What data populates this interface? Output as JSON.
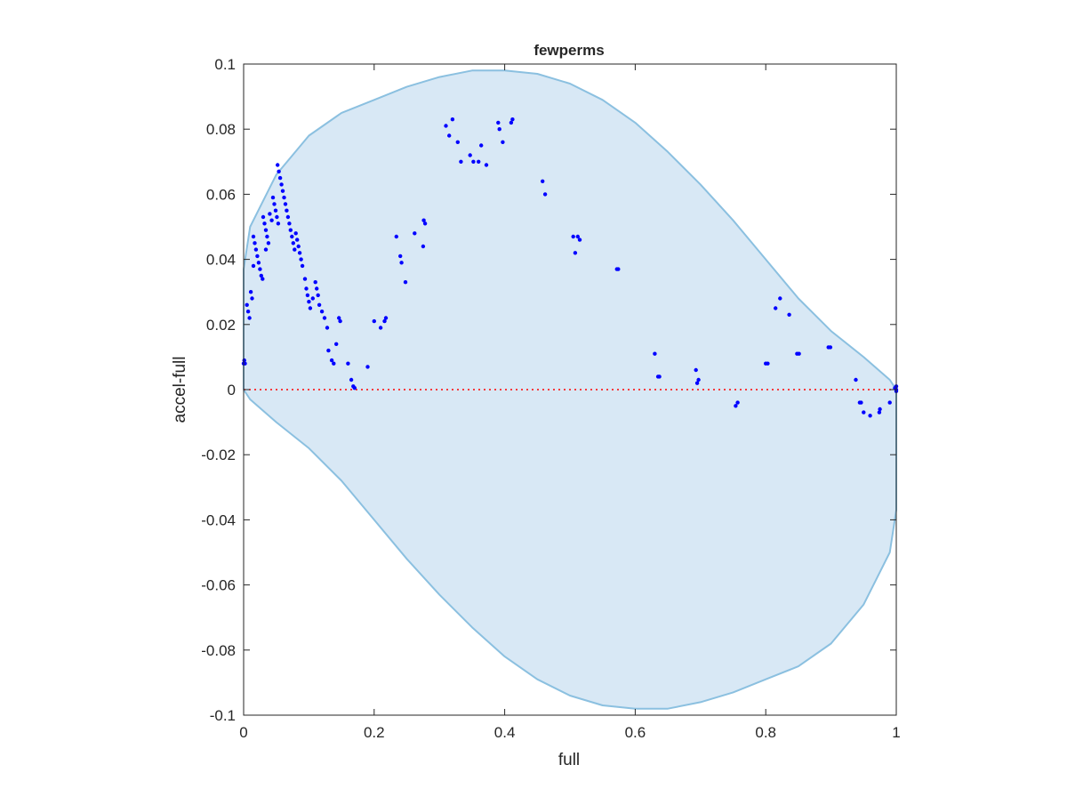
{
  "chart_data": {
    "type": "scatter",
    "title": "fewperms",
    "xlabel": "full",
    "ylabel": "accel-full",
    "xlim": [
      0,
      1
    ],
    "ylim": [
      -0.1,
      0.1
    ],
    "xticks": [
      0,
      0.2,
      0.4,
      0.6,
      0.8,
      1
    ],
    "xtick_labels": [
      "0",
      "0.2",
      "0.4",
      "0.6",
      "0.8",
      "1"
    ],
    "yticks": [
      0.1,
      0.08,
      0.06,
      0.04,
      0.02,
      0,
      -0.02,
      -0.04,
      -0.06,
      -0.08,
      -0.1
    ],
    "ytick_labels": [
      "0.1",
      "0.08",
      "0.06",
      "0.04",
      "0.02",
      "0",
      "-0.02",
      "-0.04",
      "-0.06",
      "-0.08",
      "-0.1"
    ],
    "grid": false,
    "colors": {
      "points": "#0000ff",
      "region_fill": "#d8e8f5",
      "region_edge": "#8bc0e0",
      "zero_line": "#ff0000",
      "axes": "#262626"
    },
    "region_boundary": [
      [
        0,
        0.037
      ],
      [
        0.01,
        0.05
      ],
      [
        0.03,
        0.058
      ],
      [
        0.05,
        0.066
      ],
      [
        0.1,
        0.078
      ],
      [
        0.15,
        0.085
      ],
      [
        0.2,
        0.089
      ],
      [
        0.25,
        0.093
      ],
      [
        0.3,
        0.096
      ],
      [
        0.35,
        0.098
      ],
      [
        0.4,
        0.098
      ],
      [
        0.45,
        0.097
      ],
      [
        0.5,
        0.094
      ],
      [
        0.55,
        0.089
      ],
      [
        0.6,
        0.082
      ],
      [
        0.65,
        0.073
      ],
      [
        0.7,
        0.063
      ],
      [
        0.75,
        0.052
      ],
      [
        0.8,
        0.04
      ],
      [
        0.85,
        0.028
      ],
      [
        0.9,
        0.018
      ],
      [
        0.95,
        0.01
      ],
      [
        0.99,
        0.003
      ],
      [
        1,
        0
      ],
      [
        1,
        -0.037
      ],
      [
        0.99,
        -0.05
      ],
      [
        0.97,
        -0.058
      ],
      [
        0.95,
        -0.066
      ],
      [
        0.9,
        -0.078
      ],
      [
        0.85,
        -0.085
      ],
      [
        0.8,
        -0.089
      ],
      [
        0.75,
        -0.093
      ],
      [
        0.7,
        -0.096
      ],
      [
        0.65,
        -0.098
      ],
      [
        0.6,
        -0.098
      ],
      [
        0.55,
        -0.097
      ],
      [
        0.5,
        -0.094
      ],
      [
        0.45,
        -0.089
      ],
      [
        0.4,
        -0.082
      ],
      [
        0.35,
        -0.073
      ],
      [
        0.3,
        -0.063
      ],
      [
        0.25,
        -0.052
      ],
      [
        0.2,
        -0.04
      ],
      [
        0.15,
        -0.028
      ],
      [
        0.1,
        -0.018
      ],
      [
        0.05,
        -0.01
      ],
      [
        0.01,
        -0.003
      ],
      [
        0,
        0
      ]
    ],
    "reference_line": {
      "y": 0,
      "style": "dotted"
    },
    "points": [
      [
        0,
        0.008
      ],
      [
        0.001,
        0.009
      ],
      [
        0.002,
        0.008
      ],
      [
        0.005,
        0.026
      ],
      [
        0.007,
        0.024
      ],
      [
        0.009,
        0.022
      ],
      [
        0.011,
        0.03
      ],
      [
        0.013,
        0.028
      ],
      [
        0.015,
        0.047
      ],
      [
        0.017,
        0.045
      ],
      [
        0.019,
        0.043
      ],
      [
        0.021,
        0.041
      ],
      [
        0.023,
        0.039
      ],
      [
        0.025,
        0.037
      ],
      [
        0.027,
        0.035
      ],
      [
        0.029,
        0.034
      ],
      [
        0.015,
        0.038
      ],
      [
        0.03,
        0.053
      ],
      [
        0.032,
        0.051
      ],
      [
        0.034,
        0.049
      ],
      [
        0.036,
        0.047
      ],
      [
        0.038,
        0.045
      ],
      [
        0.034,
        0.043
      ],
      [
        0.04,
        0.054
      ],
      [
        0.043,
        0.052
      ],
      [
        0.045,
        0.059
      ],
      [
        0.047,
        0.057
      ],
      [
        0.049,
        0.055
      ],
      [
        0.051,
        0.053
      ],
      [
        0.053,
        0.051
      ],
      [
        0.052,
        0.069
      ],
      [
        0.054,
        0.067
      ],
      [
        0.056,
        0.065
      ],
      [
        0.058,
        0.063
      ],
      [
        0.06,
        0.061
      ],
      [
        0.062,
        0.059
      ],
      [
        0.064,
        0.057
      ],
      [
        0.066,
        0.055
      ],
      [
        0.068,
        0.053
      ],
      [
        0.07,
        0.051
      ],
      [
        0.072,
        0.049
      ],
      [
        0.074,
        0.047
      ],
      [
        0.076,
        0.045
      ],
      [
        0.078,
        0.043
      ],
      [
        0.08,
        0.048
      ],
      [
        0.082,
        0.046
      ],
      [
        0.084,
        0.044
      ],
      [
        0.086,
        0.042
      ],
      [
        0.088,
        0.04
      ],
      [
        0.09,
        0.038
      ],
      [
        0.094,
        0.034
      ],
      [
        0.096,
        0.031
      ],
      [
        0.098,
        0.029
      ],
      [
        0.1,
        0.027
      ],
      [
        0.102,
        0.025
      ],
      [
        0.106,
        0.028
      ],
      [
        0.11,
        0.033
      ],
      [
        0.112,
        0.031
      ],
      [
        0.114,
        0.029
      ],
      [
        0.116,
        0.026
      ],
      [
        0.12,
        0.024
      ],
      [
        0.124,
        0.022
      ],
      [
        0.128,
        0.019
      ],
      [
        0.13,
        0.012
      ],
      [
        0.135,
        0.009
      ],
      [
        0.138,
        0.008
      ],
      [
        0.142,
        0.014
      ],
      [
        0.146,
        0.022
      ],
      [
        0.148,
        0.021
      ],
      [
        0.16,
        0.008
      ],
      [
        0.165,
        0.003
      ],
      [
        0.168,
        0.001
      ],
      [
        0.17,
        0.0005
      ],
      [
        0.19,
        0.007
      ],
      [
        0.2,
        0.021
      ],
      [
        0.21,
        0.019
      ],
      [
        0.216,
        0.021
      ],
      [
        0.218,
        0.022
      ],
      [
        0.234,
        0.047
      ],
      [
        0.24,
        0.041
      ],
      [
        0.242,
        0.039
      ],
      [
        0.248,
        0.033
      ],
      [
        0.262,
        0.048
      ],
      [
        0.276,
        0.052
      ],
      [
        0.278,
        0.051
      ],
      [
        0.275,
        0.044
      ],
      [
        0.31,
        0.081
      ],
      [
        0.315,
        0.078
      ],
      [
        0.32,
        0.083
      ],
      [
        0.328,
        0.076
      ],
      [
        0.333,
        0.07
      ],
      [
        0.347,
        0.072
      ],
      [
        0.352,
        0.07
      ],
      [
        0.36,
        0.07
      ],
      [
        0.364,
        0.075
      ],
      [
        0.372,
        0.069
      ],
      [
        0.39,
        0.082
      ],
      [
        0.392,
        0.08
      ],
      [
        0.397,
        0.076
      ],
      [
        0.41,
        0.082
      ],
      [
        0.412,
        0.083
      ],
      [
        0.458,
        0.064
      ],
      [
        0.462,
        0.06
      ],
      [
        0.505,
        0.047
      ],
      [
        0.508,
        0.042
      ],
      [
        0.512,
        0.047
      ],
      [
        0.515,
        0.046
      ],
      [
        0.572,
        0.037
      ],
      [
        0.574,
        0.037
      ],
      [
        0.63,
        0.011
      ],
      [
        0.635,
        0.004
      ],
      [
        0.637,
        0.004
      ],
      [
        0.693,
        0.006
      ],
      [
        0.695,
        0.002
      ],
      [
        0.697,
        0.003
      ],
      [
        0.754,
        -0.005
      ],
      [
        0.757,
        -0.004
      ],
      [
        0.8,
        0.008
      ],
      [
        0.803,
        0.008
      ],
      [
        0.815,
        0.025
      ],
      [
        0.822,
        0.028
      ],
      [
        0.836,
        0.023
      ],
      [
        0.848,
        0.011
      ],
      [
        0.851,
        0.011
      ],
      [
        0.896,
        0.013
      ],
      [
        0.899,
        0.013
      ],
      [
        0.938,
        0.003
      ],
      [
        0.944,
        -0.004
      ],
      [
        0.946,
        -0.004
      ],
      [
        0.95,
        -0.007
      ],
      [
        0.96,
        -0.008
      ],
      [
        0.974,
        -0.007
      ],
      [
        0.975,
        -0.006
      ],
      [
        0.99,
        -0.004
      ],
      [
        0.998,
        0.0005
      ],
      [
        1,
        0.001
      ],
      [
        1,
        0
      ],
      [
        1,
        -0.0005
      ]
    ]
  }
}
